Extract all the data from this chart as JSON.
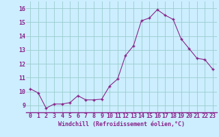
{
  "x": [
    0,
    1,
    2,
    3,
    4,
    5,
    6,
    7,
    8,
    9,
    10,
    11,
    12,
    13,
    14,
    15,
    16,
    17,
    18,
    19,
    20,
    21,
    22,
    23
  ],
  "y": [
    10.2,
    9.9,
    8.8,
    9.1,
    9.1,
    9.2,
    9.7,
    9.4,
    9.4,
    9.45,
    10.4,
    10.9,
    12.6,
    13.3,
    15.1,
    15.3,
    15.9,
    15.5,
    15.2,
    13.8,
    13.1,
    12.4,
    12.3,
    11.6
  ],
  "xlabel": "Windchill (Refroidissement éolien,°C)",
  "ylim": [
    8.5,
    16.5
  ],
  "xlim": [
    -0.5,
    23.5
  ],
  "yticks": [
    9,
    10,
    11,
    12,
    13,
    14,
    15,
    16
  ],
  "line_color": "#882288",
  "marker_color": "#882288",
  "bg_color": "#cceeff",
  "grid_color": "#99cccc",
  "label_color": "#882288",
  "font_size": 6.0
}
